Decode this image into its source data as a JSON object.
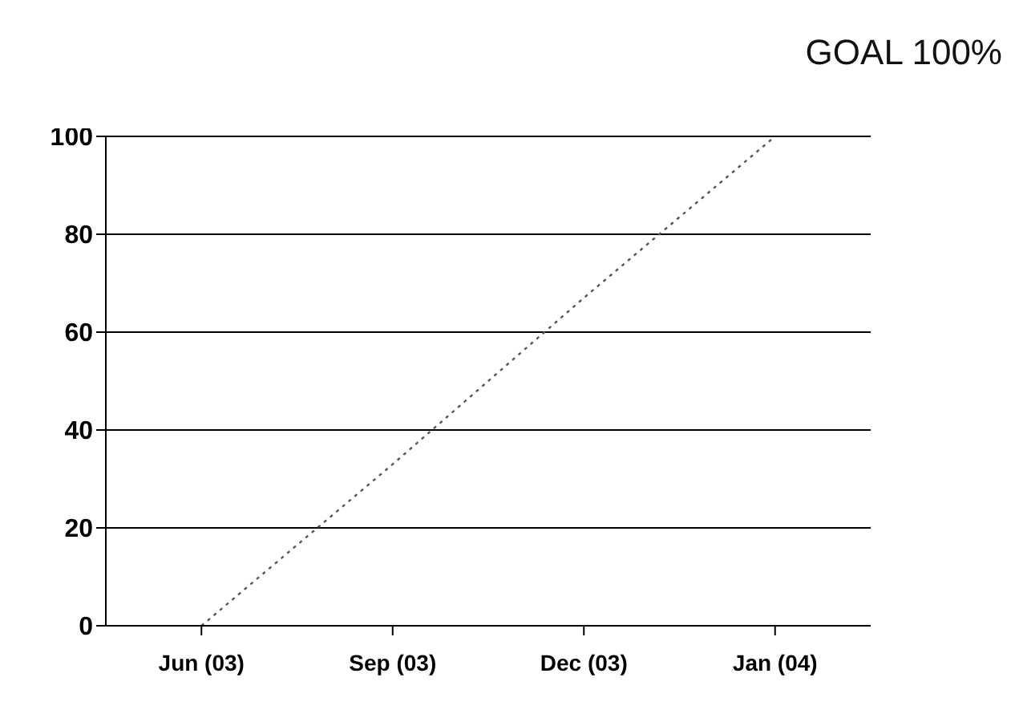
{
  "chart_data": {
    "type": "line",
    "title": "GOAL 100%",
    "categories": [
      "Jun (03)",
      "Sep (03)",
      "Dec (03)",
      "Jan (04)"
    ],
    "values": [
      0,
      33,
      67,
      100
    ],
    "color": "#555555",
    "ylim": [
      0,
      100
    ],
    "yticks": [
      0,
      20,
      40,
      60,
      80,
      100
    ],
    "grid": "y",
    "line_style": "dotted",
    "marker": "none"
  }
}
